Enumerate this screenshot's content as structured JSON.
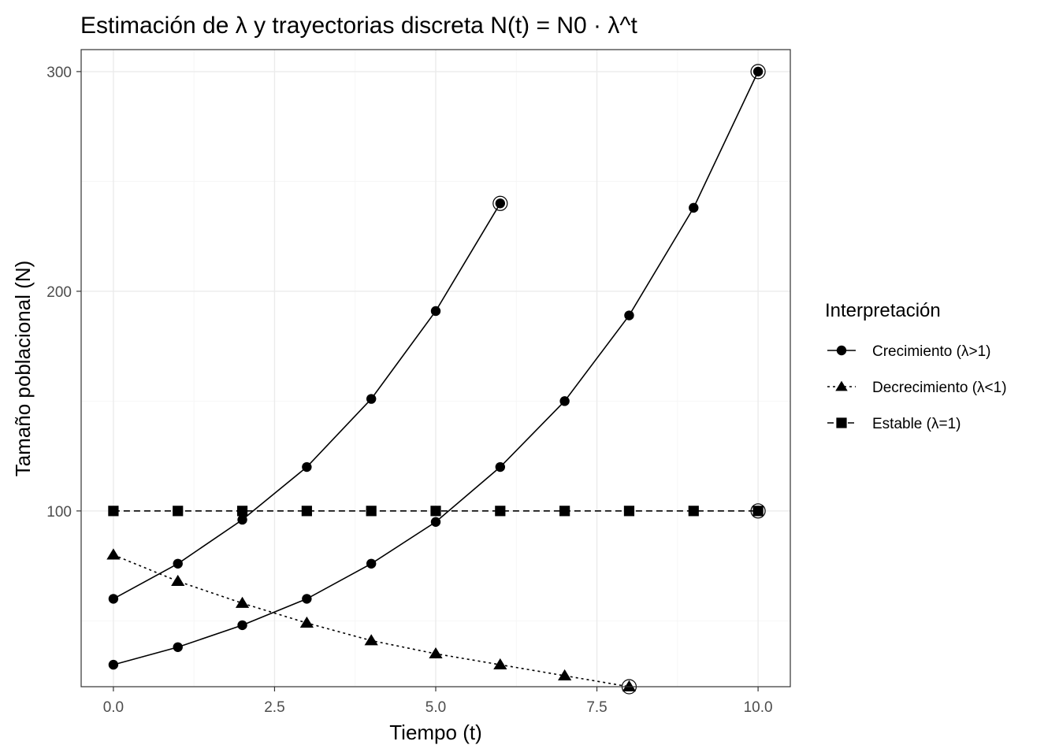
{
  "chart_data": {
    "type": "line",
    "title": "Estimación de λ y trayectorias discreta N(t) = N0 · λ^t",
    "xlabel": "Tiempo (t)",
    "ylabel": "Tamaño poblacional (N)",
    "xlim": [
      -0.5,
      10.5
    ],
    "ylim": [
      20,
      310
    ],
    "x_ticks": [
      0,
      2.5,
      5,
      7.5,
      10
    ],
    "x_tick_labels": [
      "0.0",
      "2.5",
      "5.0",
      "7.5",
      "10.0"
    ],
    "y_ticks": [
      100,
      200,
      300
    ],
    "y_tick_labels": [
      "100",
      "200",
      "300"
    ],
    "grid": true,
    "legend": {
      "title": "Interpretación",
      "position": "right",
      "entries": [
        {
          "label": "Crecimiento (λ>1)",
          "shape": "circle",
          "linetype": "solid"
        },
        {
          "label": "Decrecimiento (λ<1)",
          "shape": "triangle",
          "linetype": "dotted"
        },
        {
          "label": "Estable (λ=1)",
          "shape": "square",
          "linetype": "dashed"
        }
      ]
    },
    "series": [
      {
        "group": "Crecimiento (λ>1)",
        "shape": "circle",
        "linetype": "solid",
        "x": [
          0,
          1,
          2,
          3,
          4,
          5,
          6
        ],
        "y": [
          60,
          76,
          96,
          120,
          151,
          191,
          240
        ]
      },
      {
        "group": "Crecimiento (λ>1)",
        "shape": "circle",
        "linetype": "solid",
        "x": [
          0,
          1,
          2,
          3,
          4,
          5,
          6,
          7,
          8,
          9,
          10
        ],
        "y": [
          30,
          38,
          48,
          60,
          76,
          95,
          120,
          150,
          189,
          238,
          300
        ]
      },
      {
        "group": "Decrecimiento (λ<1)",
        "shape": "triangle",
        "linetype": "dotted",
        "x": [
          0,
          1,
          2,
          3,
          4,
          5,
          6,
          7,
          8
        ],
        "y": [
          80,
          68,
          58,
          49,
          41,
          35,
          30,
          25,
          20
        ]
      },
      {
        "group": "Estable (λ=1)",
        "shape": "square",
        "linetype": "dashed",
        "x": [
          0,
          1,
          2,
          3,
          4,
          5,
          6,
          7,
          8,
          9,
          10
        ],
        "y": [
          100,
          100,
          100,
          100,
          100,
          100,
          100,
          100,
          100,
          100,
          100
        ]
      }
    ],
    "highlighted_points": [
      {
        "x": 6,
        "y": 240
      },
      {
        "x": 10,
        "y": 300
      },
      {
        "x": 8,
        "y": 20
      },
      {
        "x": 10,
        "y": 100
      }
    ]
  }
}
